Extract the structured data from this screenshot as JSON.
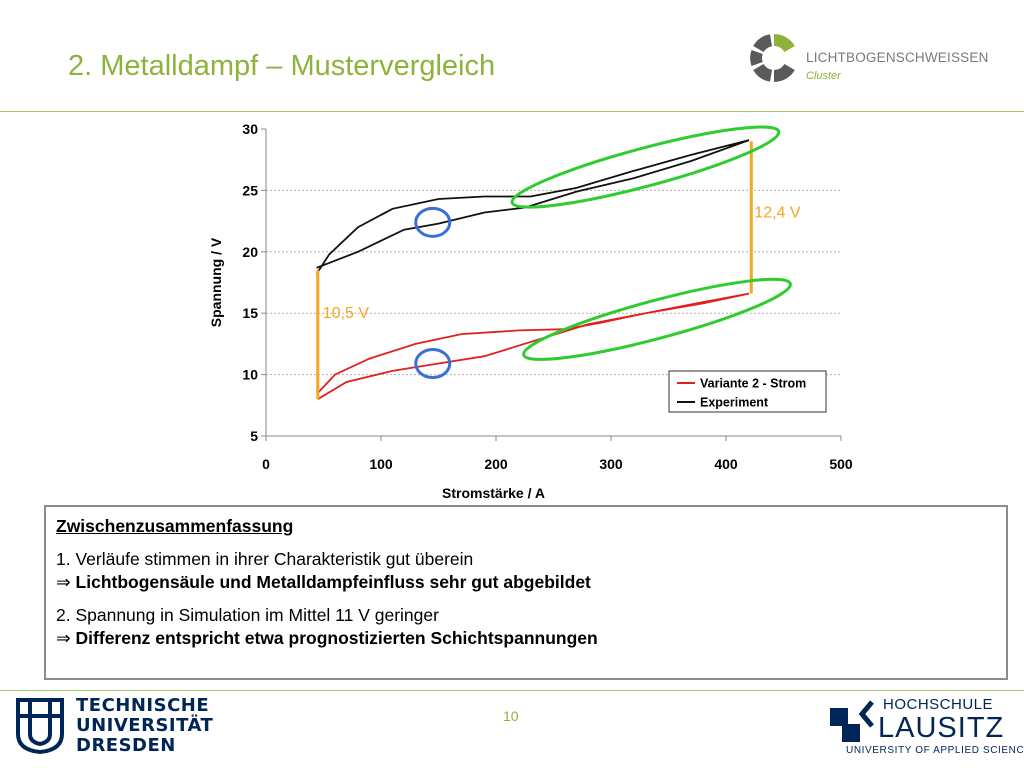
{
  "slide": {
    "title": "2. Metalldampf – Mustervergleich",
    "page_number": "10"
  },
  "logos": {
    "top_right": {
      "name": "LICHTBOGENSCHWEISSEN",
      "sub": "Cluster"
    },
    "bottom_left": {
      "line1": "TECHNISCHE",
      "line2": "UNIVERSITÄT",
      "line3": "DRESDEN"
    },
    "bottom_right": {
      "line1": "HOCHSCHULE",
      "line2": "LAUSITZ",
      "line3": "UNIVERSITY OF APPLIED SCIENCES"
    }
  },
  "colors": {
    "accent_green": "#8db33a",
    "curve_red": "#e02020",
    "curve_black": "#111111",
    "marker_orange": "#f5a623",
    "ellipse_green": "#2ecc2e",
    "circle_blue": "#3a6fd8"
  },
  "chart_data": {
    "type": "line",
    "xlabel": "Stromstärke / A",
    "ylabel": "Spannung / V",
    "xlim": [
      0,
      500
    ],
    "ylim": [
      5,
      30
    ],
    "xticks": [
      "0",
      "100",
      "200",
      "300",
      "400",
      "500"
    ],
    "yticks": [
      "5",
      "10",
      "15",
      "20",
      "25",
      "30"
    ],
    "grid": "horizontal dashed",
    "legend_position": "bottom-right",
    "series": [
      {
        "name": "Variante 2 - Strom",
        "color": "#e02020",
        "upper": [
          [
            45,
            8.5
          ],
          [
            60,
            10.0
          ],
          [
            90,
            11.3
          ],
          [
            130,
            12.5
          ],
          [
            170,
            13.3
          ],
          [
            220,
            13.6
          ],
          [
            260,
            13.7
          ],
          [
            290,
            14.2
          ],
          [
            330,
            15.0
          ],
          [
            380,
            15.8
          ],
          [
            420,
            16.6
          ]
        ],
        "lower": [
          [
            420,
            16.6
          ],
          [
            380,
            15.9
          ],
          [
            330,
            15.0
          ],
          [
            280,
            14.1
          ],
          [
            235,
            12.8
          ],
          [
            190,
            11.5
          ],
          [
            150,
            10.9
          ],
          [
            110,
            10.3
          ],
          [
            70,
            9.4
          ],
          [
            45,
            8.0
          ]
        ]
      },
      {
        "name": "Experiment",
        "color": "#111111",
        "upper": [
          [
            44,
            18.2
          ],
          [
            55,
            19.8
          ],
          [
            80,
            22.0
          ],
          [
            110,
            23.5
          ],
          [
            150,
            24.3
          ],
          [
            190,
            24.5
          ],
          [
            230,
            24.5
          ],
          [
            270,
            25.2
          ],
          [
            320,
            26.6
          ],
          [
            370,
            27.9
          ],
          [
            420,
            29.1
          ]
        ],
        "lower": [
          [
            420,
            29.1
          ],
          [
            370,
            27.4
          ],
          [
            320,
            26.0
          ],
          [
            270,
            24.9
          ],
          [
            225,
            23.6
          ],
          [
            190,
            23.2
          ],
          [
            150,
            22.3
          ],
          [
            120,
            21.8
          ],
          [
            80,
            20.0
          ],
          [
            44,
            18.7
          ]
        ]
      }
    ],
    "annotations": [
      {
        "label": "10,5 V",
        "x": 45,
        "y_from": 8.0,
        "y_to": 18.5
      },
      {
        "label": "12,4 V",
        "x": 422,
        "y_from": 16.6,
        "y_to": 29.0
      }
    ],
    "ellipses": [
      {
        "cx": 330,
        "cy": 26.9,
        "rx": 120,
        "ry": 1.6,
        "rotate_data": [
          [
            240,
            24.6
          ],
          [
            420,
            29.1
          ]
        ]
      },
      {
        "cx": 340,
        "cy": 14.5,
        "rx": 120,
        "ry": 1.6,
        "rotate_data": [
          [
            260,
            12.8
          ],
          [
            420,
            16.8
          ]
        ]
      }
    ],
    "circles": [
      {
        "cx": 145,
        "cy": 22.4
      },
      {
        "cx": 145,
        "cy": 10.9
      }
    ]
  },
  "summary": {
    "title": "Zwischenzusammenfassung",
    "point1": "1. Verläufe stimmen in ihrer Charakteristik gut überein",
    "arrow": "⇒",
    "conclusion1": "Lichtbogensäule und Metalldampfeinfluss sehr gut abgebildet",
    "point2": "2. Spannung in Simulation im Mittel 11 V geringer",
    "conclusion2": "Differenz entspricht etwa prognostizierten Schichtspannungen"
  }
}
